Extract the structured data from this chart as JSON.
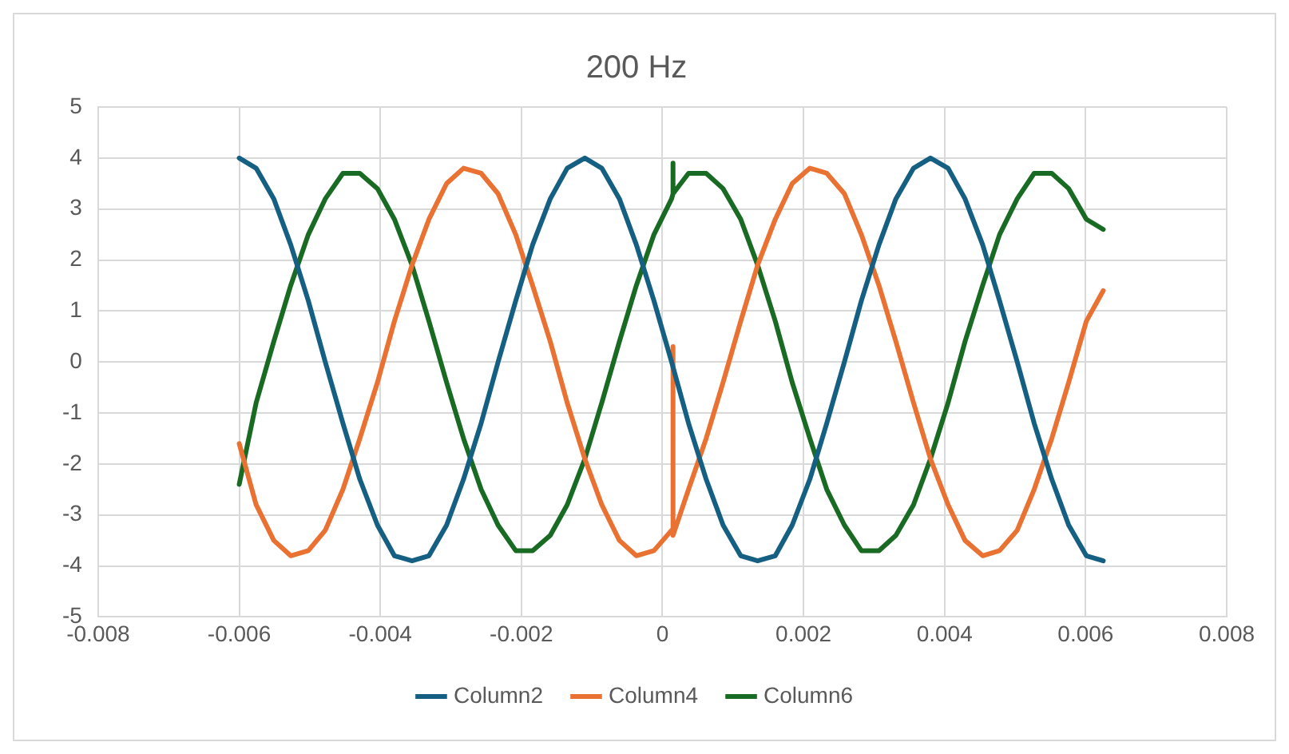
{
  "chart_data": {
    "type": "line",
    "title": "200 Hz",
    "x": [
      -0.006,
      -0.00576,
      -0.00551,
      -0.00527,
      -0.00502,
      -0.00478,
      -0.00453,
      -0.00429,
      -0.00404,
      -0.0038,
      -0.00355,
      -0.00331,
      -0.00306,
      -0.00282,
      -0.00257,
      -0.00233,
      -0.00208,
      -0.00184,
      -0.00159,
      -0.00135,
      -0.0011,
      -0.00086,
      -0.00061,
      -0.00037,
      -0.00012,
      0.00013,
      0.00037,
      0.00062,
      0.00086,
      0.00111,
      0.00135,
      0.0016,
      0.00184,
      0.00209,
      0.00233,
      0.00258,
      0.00282,
      0.00307,
      0.00331,
      0.00356,
      0.0038,
      0.00405,
      0.00429,
      0.00454,
      0.00478,
      0.00503,
      0.00527,
      0.00552,
      0.00576,
      0.00601,
      0.00625
    ],
    "series": [
      {
        "name": "Column2",
        "color": "#156082",
        "values": [
          4.0,
          3.8,
          3.2,
          2.3,
          1.2,
          0,
          -1.2,
          -2.3,
          -3.2,
          -3.8,
          -3.9,
          -3.8,
          -3.2,
          -2.3,
          -1.2,
          0,
          1.2,
          2.3,
          3.2,
          3.8,
          4.0,
          3.8,
          3.2,
          2.3,
          1.2,
          0,
          -1.2,
          -2.3,
          -3.2,
          -3.8,
          -3.9,
          -3.8,
          -3.2,
          -2.3,
          -1.2,
          0,
          1.2,
          2.3,
          3.2,
          3.8,
          4.0,
          3.8,
          3.2,
          2.3,
          1.2,
          0,
          -1.2,
          -2.3,
          -3.2,
          -3.8,
          -3.9
        ]
      },
      {
        "name": "Column4",
        "color": "#e97132",
        "x": [
          -0.006,
          -0.00576,
          -0.00551,
          -0.00527,
          -0.00502,
          -0.00478,
          -0.00453,
          -0.00429,
          -0.00404,
          -0.0038,
          -0.00355,
          -0.00331,
          -0.00306,
          -0.00282,
          -0.00257,
          -0.00233,
          -0.00208,
          -0.00184,
          -0.00159,
          -0.00135,
          -0.0011,
          -0.00086,
          -0.00061,
          -0.00037,
          -0.00012,
          0.00013,
          0.00015,
          0.00015,
          0.00015,
          0.00037,
          0.00062,
          0.00086,
          0.00111,
          0.00135,
          0.0016,
          0.00184,
          0.00209,
          0.00233,
          0.00258,
          0.00282,
          0.00307,
          0.00331,
          0.00356,
          0.0038,
          0.00405,
          0.00429,
          0.00454,
          0.00478,
          0.00503,
          0.00527,
          0.00552,
          0.00576,
          0.00601,
          0.00625
        ],
        "values": [
          -1.6,
          -2.8,
          -3.5,
          -3.8,
          -3.7,
          -3.3,
          -2.5,
          -1.5,
          -0.4,
          0.8,
          1.9,
          2.8,
          3.5,
          3.8,
          3.7,
          3.3,
          2.5,
          1.5,
          0.4,
          -0.8,
          -1.9,
          -2.8,
          -3.5,
          -3.8,
          -3.7,
          -3.3,
          -3.4,
          0.3,
          -3.4,
          -2.5,
          -1.5,
          -0.4,
          0.8,
          1.9,
          2.8,
          3.5,
          3.8,
          3.7,
          3.3,
          2.5,
          1.5,
          0.4,
          -0.8,
          -1.9,
          -2.8,
          -3.5,
          -3.8,
          -3.7,
          -3.3,
          -2.5,
          -1.5,
          -0.4,
          0.8,
          1.4
        ]
      },
      {
        "name": "Column6",
        "color": "#196b24",
        "x": [
          -0.006,
          -0.00576,
          -0.00551,
          -0.00527,
          -0.00502,
          -0.00478,
          -0.00453,
          -0.00429,
          -0.00404,
          -0.0038,
          -0.00355,
          -0.00331,
          -0.00306,
          -0.00282,
          -0.00257,
          -0.00233,
          -0.00208,
          -0.00184,
          -0.00159,
          -0.00135,
          -0.0011,
          -0.00086,
          -0.00061,
          -0.00037,
          -0.00012,
          0.00013,
          0.00015,
          0.00015,
          0.00015,
          0.00037,
          0.00062,
          0.00086,
          0.00111,
          0.00135,
          0.0016,
          0.00184,
          0.00209,
          0.00233,
          0.00258,
          0.00282,
          0.00307,
          0.00331,
          0.00356,
          0.0038,
          0.00405,
          0.00429,
          0.00454,
          0.00478,
          0.00503,
          0.00527,
          0.00552,
          0.00576,
          0.00601,
          0.00625
        ],
        "values": [
          -2.4,
          -0.8,
          0.4,
          1.5,
          2.5,
          3.2,
          3.7,
          3.7,
          3.4,
          2.8,
          1.9,
          0.8,
          -0.4,
          -1.5,
          -2.5,
          -3.2,
          -3.7,
          -3.7,
          -3.4,
          -2.8,
          -1.9,
          -0.8,
          0.4,
          1.5,
          2.5,
          3.2,
          3.3,
          3.9,
          3.3,
          3.7,
          3.7,
          3.4,
          2.8,
          1.9,
          0.8,
          -0.4,
          -1.5,
          -2.5,
          -3.2,
          -3.7,
          -3.7,
          -3.4,
          -2.8,
          -1.9,
          -0.8,
          0.4,
          1.5,
          2.5,
          3.2,
          3.7,
          3.7,
          3.4,
          2.8,
          2.6
        ]
      }
    ],
    "xlim": [
      -0.008,
      0.008
    ],
    "xticks": [
      -0.008,
      -0.006,
      -0.004,
      -0.002,
      0,
      0.002,
      0.004,
      0.006,
      0.008
    ],
    "ylim": [
      -5,
      5
    ],
    "yticks": [
      -5,
      -4,
      -3,
      -2,
      -1,
      0,
      1,
      2,
      3,
      4,
      5
    ],
    "grid": true,
    "legend": "bottom",
    "marker": "none",
    "line_style": "solid"
  }
}
